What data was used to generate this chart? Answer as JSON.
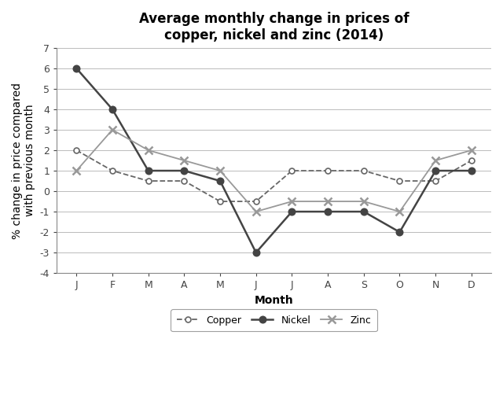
{
  "title": "Average monthly change in prices of\ncopper, nickel and zinc (2014)",
  "xlabel": "Month",
  "ylabel": "% change in price compared\nwith previous month",
  "months": [
    "J",
    "F",
    "M",
    "A",
    "M",
    "J",
    "J",
    "A",
    "S",
    "O",
    "N",
    "D"
  ],
  "copper": [
    2.0,
    1.0,
    0.5,
    0.5,
    -0.5,
    -0.5,
    1.0,
    1.0,
    1.0,
    0.5,
    0.5,
    1.5
  ],
  "nickel": [
    6.0,
    4.0,
    1.0,
    1.0,
    0.5,
    -3.0,
    -1.0,
    -1.0,
    -1.0,
    -2.0,
    1.0,
    1.0
  ],
  "zinc": [
    1.0,
    3.0,
    2.0,
    1.5,
    1.0,
    -1.0,
    -0.5,
    -0.5,
    -0.5,
    -1.0,
    1.5,
    2.0
  ],
  "ylim": [
    -4,
    7
  ],
  "yticks": [
    -4,
    -3,
    -2,
    -1,
    0,
    1,
    2,
    3,
    4,
    5,
    6,
    7
  ],
  "background_color": "#ffffff",
  "grid_color": "#bbbbbb",
  "copper_color": "#666666",
  "nickel_color": "#444444",
  "zinc_color": "#999999",
  "title_fontsize": 12,
  "label_fontsize": 10,
  "tick_fontsize": 9,
  "legend_fontsize": 9
}
